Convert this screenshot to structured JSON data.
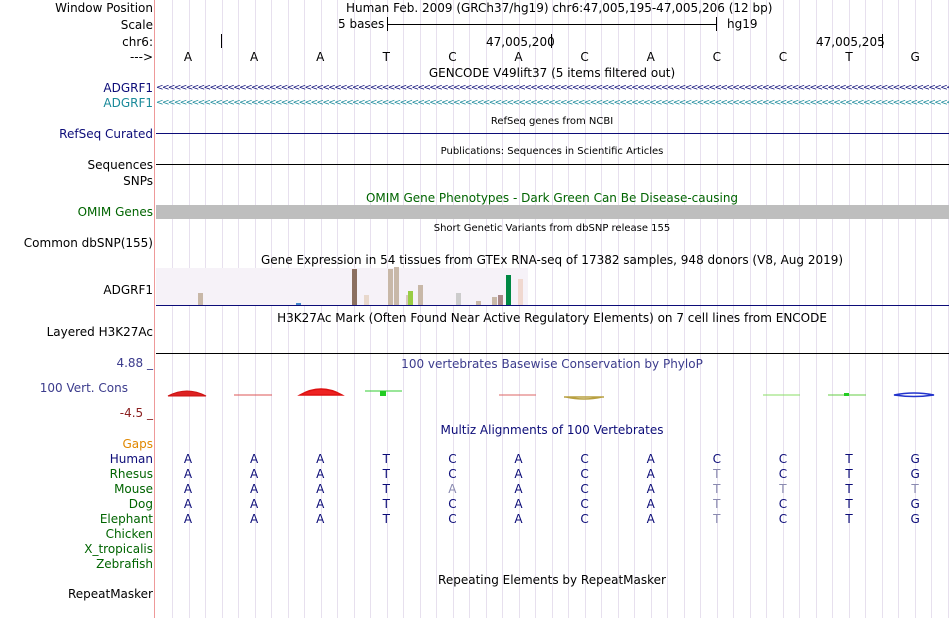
{
  "header": {
    "window_position_label": "Window Position",
    "window_position_value": "Human Feb. 2009 (GRCh37/hg19)   chr6:47,005,195-47,005,206 (12 bp)",
    "scale_label": "Scale",
    "scale_value": "5 bases",
    "scale_assembly": "hg19",
    "chrom_label": "chr6:",
    "coord_1": "47,005,200",
    "coord_2": "47,005,205",
    "strand_label": "--->"
  },
  "sequence": [
    "A",
    "A",
    "A",
    "T",
    "C",
    "A",
    "C",
    "A",
    "C",
    "C",
    "T",
    "G"
  ],
  "tracks": {
    "gencode_title": "GENCODE V49lift37 (5 items filtered out)",
    "gencode_items": [
      "ADGRF1",
      "ADGRF1"
    ],
    "refseq_title": "RefSeq genes from NCBI",
    "refseq_label": "RefSeq Curated",
    "publications_title": "Publications: Sequences in Scientific Articles",
    "sequences_label": "Sequences",
    "snps_label": "SNPs",
    "omim_title": "OMIM Gene Phenotypes - Dark Green Can Be Disease-causing",
    "omim_label": "OMIM Genes",
    "dbsnp_title": "Short Genetic Variants from dbSNP release 155",
    "dbsnp_label": "Common dbSNP(155)",
    "gtex_title": "Gene Expression in 54 tissues from GTEx RNA-seq of 17382 samples, 948 donors (V8, Aug 2019)",
    "gtex_label": "ADGRF1",
    "h3k27ac_title": "H3K27Ac Mark (Often Found Near Active Regulatory Elements) on 7 cell lines from ENCODE",
    "h3k27ac_label": "Layered H3K27Ac",
    "phylop_title": "100 vertebrates Basewise Conservation by PhyloP",
    "phylop_label": "100 Vert. Cons",
    "phylop_max": "4.88 _",
    "phylop_min": "-4.5 _",
    "multiz_title": "Multiz Alignments of 100 Vertebrates",
    "gaps_label": "Gaps",
    "repeat_title": "Repeating Elements by RepeatMasker",
    "repeat_label": "RepeatMasker"
  },
  "alignments": [
    {
      "species": "Human",
      "bases": [
        "A",
        "A",
        "A",
        "T",
        "C",
        "A",
        "C",
        "A",
        "C",
        "C",
        "T",
        "G"
      ],
      "faded": []
    },
    {
      "species": "Rhesus",
      "bases": [
        "A",
        "A",
        "A",
        "T",
        "C",
        "A",
        "C",
        "A",
        "T",
        "C",
        "T",
        "G"
      ],
      "faded": [
        8
      ]
    },
    {
      "species": "Mouse",
      "bases": [
        "A",
        "A",
        "A",
        "T",
        "A",
        "A",
        "C",
        "A",
        "T",
        "T",
        "T",
        "T"
      ],
      "faded": [
        4,
        8,
        9,
        11
      ]
    },
    {
      "species": "Dog",
      "bases": [
        "A",
        "A",
        "A",
        "T",
        "C",
        "A",
        "C",
        "A",
        "T",
        "C",
        "T",
        "G"
      ],
      "faded": [
        8
      ]
    },
    {
      "species": "Elephant",
      "bases": [
        "A",
        "A",
        "A",
        "T",
        "C",
        "A",
        "C",
        "A",
        "T",
        "C",
        "T",
        "G"
      ],
      "faded": [
        8
      ]
    },
    {
      "species": "Chicken",
      "bases": [],
      "faded": []
    },
    {
      "species": "X_tropicalis",
      "bases": [],
      "faded": []
    },
    {
      "species": "Zebrafish",
      "bases": [],
      "faded": []
    }
  ],
  "colors": {
    "gencode_dark": "#0c0c78",
    "gencode_teal": "#1a8a9a",
    "refseq": "#0c0c78",
    "omim_label": "#006400",
    "omim_bar": "#bebebe",
    "phylop_title": "#3b3b8c",
    "phylop_max": "#3b3b8c",
    "phylop_min": "#8b2020",
    "gaps": "#e08800",
    "multiz_title": "#0c0c78",
    "species_human": "#0c0c78",
    "species_other": "#006400",
    "base_dark": "#0c0c78",
    "base_faded": "#8a8ab0"
  }
}
